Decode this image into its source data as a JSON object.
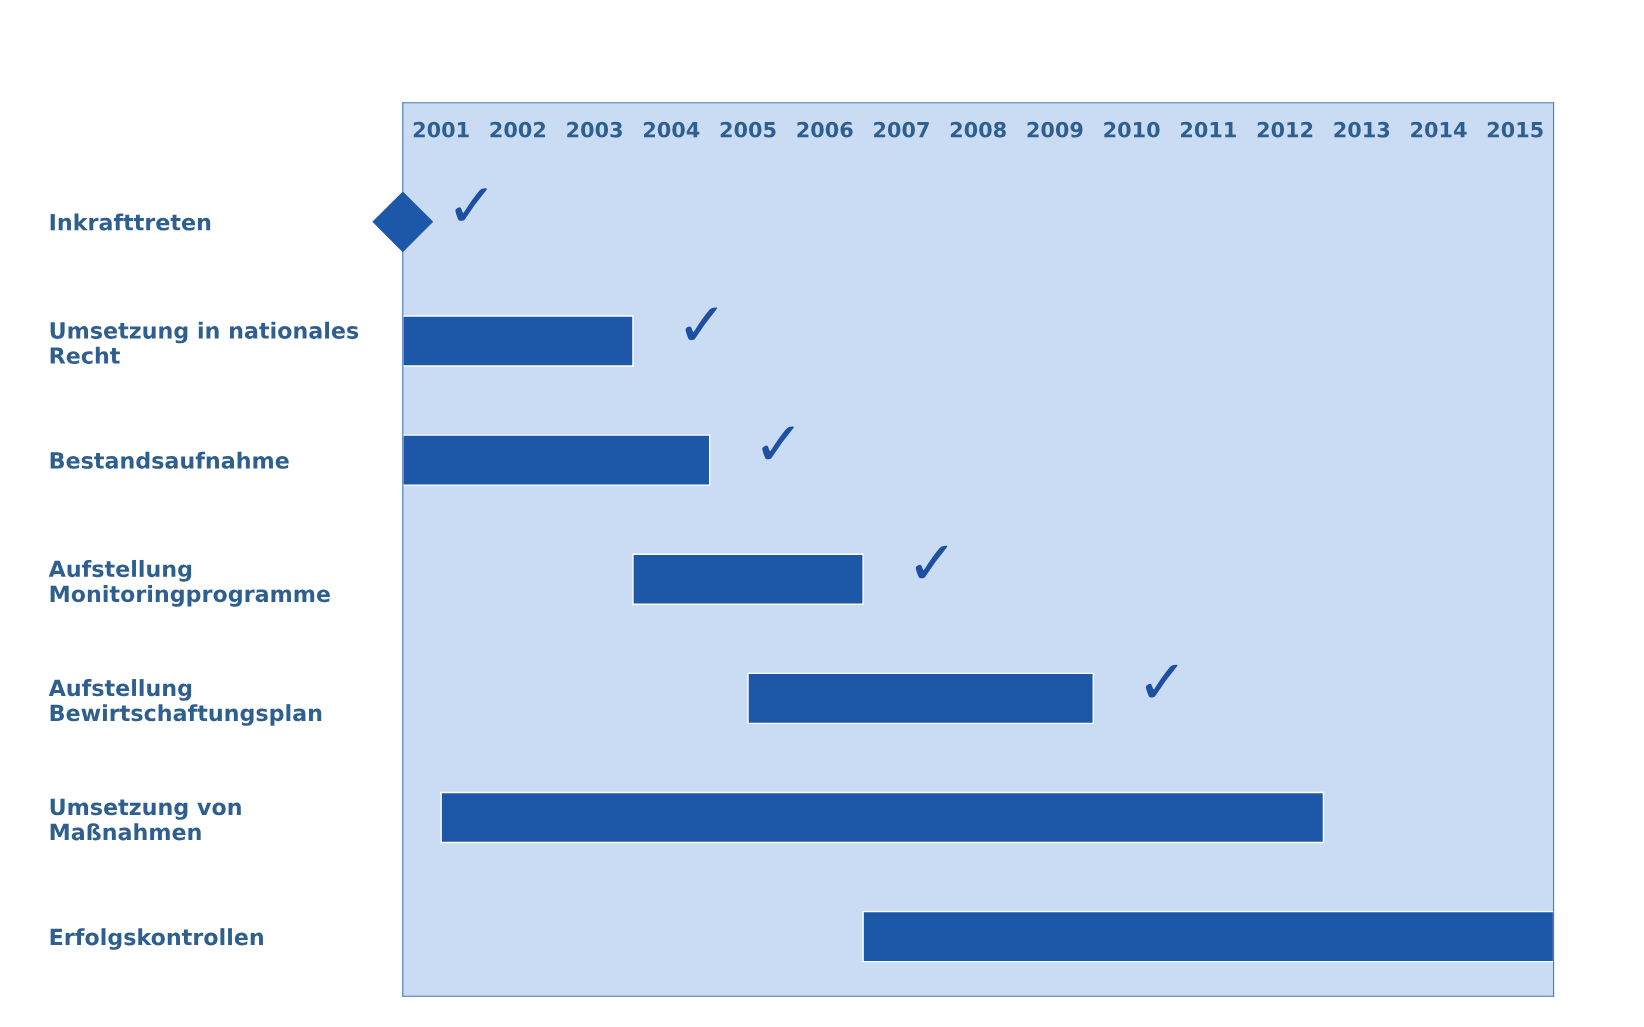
{
  "chart_data": {
    "type": "bar",
    "orientation": "horizontal",
    "categories": [
      "Inkrafttreten",
      "Umsetzung in nationales\nRecht",
      "Bestandsaufnahme",
      "Aufstellung\nMonitoringprogramme",
      "Aufstellung\nBewirtschaftungsplan",
      "Umsetzung von\nMaßnahmen",
      "Erfolgskontrollen"
    ],
    "series": [
      {
        "color": "#1d57a8",
        "base": [
          null,
          2001,
          2001,
          2004,
          2005.5,
          2001.5,
          2007
        ],
        "values": [
          null,
          3,
          4,
          3,
          4.5,
          11.5,
          9
        ]
      },
      {
        "type": "scatter",
        "marker": "diamond",
        "color": "#1d57a8",
        "values": [
          2001,
          null,
          null,
          null,
          null,
          null,
          null
        ]
      }
    ],
    "xlim": [
      2001,
      2016
    ],
    "xticks": [
      {
        "value": 2001.5,
        "label": "2001"
      },
      {
        "value": 2002.5,
        "label": "2002"
      },
      {
        "value": 2003.5,
        "label": "2003"
      },
      {
        "value": 2004.5,
        "label": "2004"
      },
      {
        "value": 2005.5,
        "label": "2005"
      },
      {
        "value": 2006.5,
        "label": "2006"
      },
      {
        "value": 2007.5,
        "label": "2007"
      },
      {
        "value": 2008.5,
        "label": "2008"
      },
      {
        "value": 2009.5,
        "label": "2009"
      },
      {
        "value": 2010.5,
        "label": "2010"
      },
      {
        "value": 2011.5,
        "label": "2011"
      },
      {
        "value": 2012.5,
        "label": "2012"
      },
      {
        "value": 2013.5,
        "label": "2013"
      },
      {
        "value": 2014.5,
        "label": "2014"
      },
      {
        "value": 2015.5,
        "label": "2015"
      }
    ],
    "annotations": [
      "✓",
      "✓",
      "✓",
      "✓",
      "✓"
    ]
  }
}
